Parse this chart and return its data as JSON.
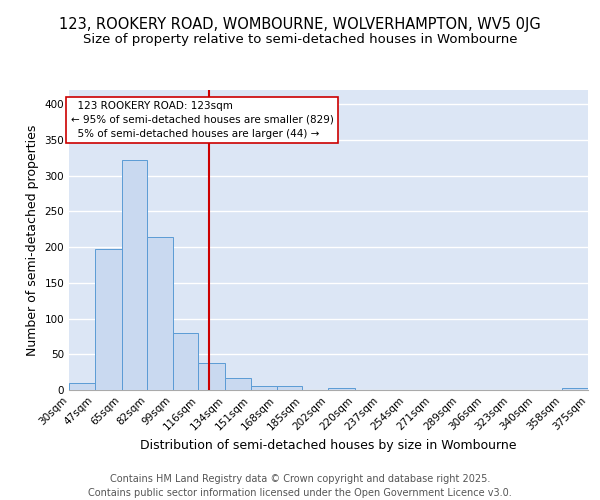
{
  "title_line1": "123, ROOKERY ROAD, WOMBOURNE, WOLVERHAMPTON, WV5 0JG",
  "title_line2": "Size of property relative to semi-detached houses in Wombourne",
  "xlabel": "Distribution of semi-detached houses by size in Wombourne",
  "ylabel": "Number of semi-detached properties",
  "bin_labels": [
    "30sqm",
    "47sqm",
    "65sqm",
    "82sqm",
    "99sqm",
    "116sqm",
    "134sqm",
    "151sqm",
    "168sqm",
    "185sqm",
    "202sqm",
    "220sqm",
    "237sqm",
    "254sqm",
    "271sqm",
    "289sqm",
    "306sqm",
    "323sqm",
    "340sqm",
    "358sqm",
    "375sqm"
  ],
  "bin_edges": [
    30,
    47,
    65,
    82,
    99,
    116,
    134,
    151,
    168,
    185,
    202,
    220,
    237,
    254,
    271,
    289,
    306,
    323,
    340,
    358,
    375
  ],
  "counts": [
    10,
    197,
    322,
    214,
    80,
    38,
    17,
    5,
    6,
    0,
    3,
    0,
    0,
    0,
    0,
    0,
    0,
    0,
    0,
    3,
    0
  ],
  "bar_facecolor": "#c9d9f0",
  "bar_edgecolor": "#5b9bd5",
  "property_size": 123,
  "vline_color": "#cc0000",
  "annotation_text": "  123 ROOKERY ROAD: 123sqm  \n← 95% of semi-detached houses are smaller (829)\n  5% of semi-detached houses are larger (44) →  ",
  "annotation_box_color": "#ffffff",
  "annotation_box_edgecolor": "#cc0000",
  "ylim": [
    0,
    420
  ],
  "yticks": [
    0,
    50,
    100,
    150,
    200,
    250,
    300,
    350,
    400
  ],
  "background_color": "#dce6f5",
  "grid_color": "#ffffff",
  "footer_text": "Contains HM Land Registry data © Crown copyright and database right 2025.\nContains public sector information licensed under the Open Government Licence v3.0.",
  "title_fontsize": 10.5,
  "subtitle_fontsize": 9.5,
  "axis_label_fontsize": 9,
  "tick_fontsize": 7.5,
  "footer_fontsize": 7,
  "annotation_fontsize": 7.5
}
